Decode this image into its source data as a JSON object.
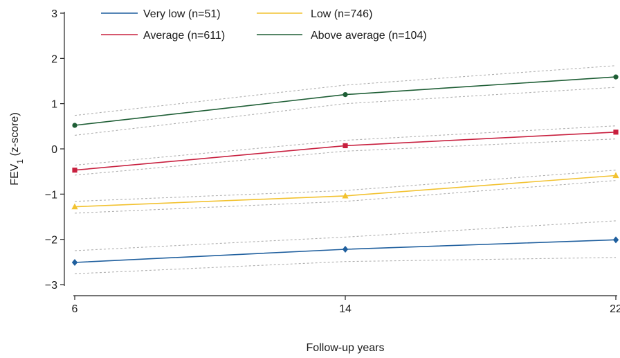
{
  "chart_data": {
    "type": "line",
    "xlabel": "Follow-up years",
    "ylabel": {
      "main": "FEV",
      "sub": "1",
      "rest": " (z-score)"
    },
    "x": [
      6,
      14,
      22
    ],
    "x_ticks": [
      6,
      14,
      22
    ],
    "ylim": [
      -3,
      3
    ],
    "y_ticks": [
      3,
      2,
      1,
      0,
      -1,
      -2,
      -3
    ],
    "y_tick_labels": [
      "3",
      "2",
      "1",
      "0",
      "−1",
      "−2",
      "−3"
    ],
    "grid": false,
    "legend_position": "top",
    "series": [
      {
        "name": "Very low (n=51)",
        "color": "#1f5f9e",
        "marker": "diamond",
        "values": [
          -2.51,
          -2.22,
          -2.01
        ],
        "ci_upper": [
          -2.25,
          -1.95,
          -1.59
        ],
        "ci_lower": [
          -2.76,
          -2.49,
          -2.4
        ]
      },
      {
        "name": "Low (n=746)",
        "color": "#f2c230",
        "marker": "triangle",
        "values": [
          -1.28,
          -1.04,
          -0.59
        ],
        "ci_upper": [
          -1.16,
          -0.92,
          -0.47
        ],
        "ci_lower": [
          -1.42,
          -1.16,
          -0.7
        ]
      },
      {
        "name": "Average (n=611)",
        "color": "#c8203f",
        "marker": "square",
        "values": [
          -0.47,
          0.07,
          0.37
        ],
        "ci_upper": [
          -0.36,
          0.19,
          0.51
        ],
        "ci_lower": [
          -0.58,
          -0.05,
          0.22
        ]
      },
      {
        "name": "Above average (n=104)",
        "color": "#1e5e35",
        "marker": "circle",
        "values": [
          0.52,
          1.2,
          1.59
        ],
        "ci_upper": [
          0.74,
          1.41,
          1.84
        ],
        "ci_lower": [
          0.3,
          1.0,
          1.36
        ]
      }
    ],
    "legend_order": [
      0,
      2,
      1,
      3
    ],
    "ci_color": "#b0b0b0"
  }
}
